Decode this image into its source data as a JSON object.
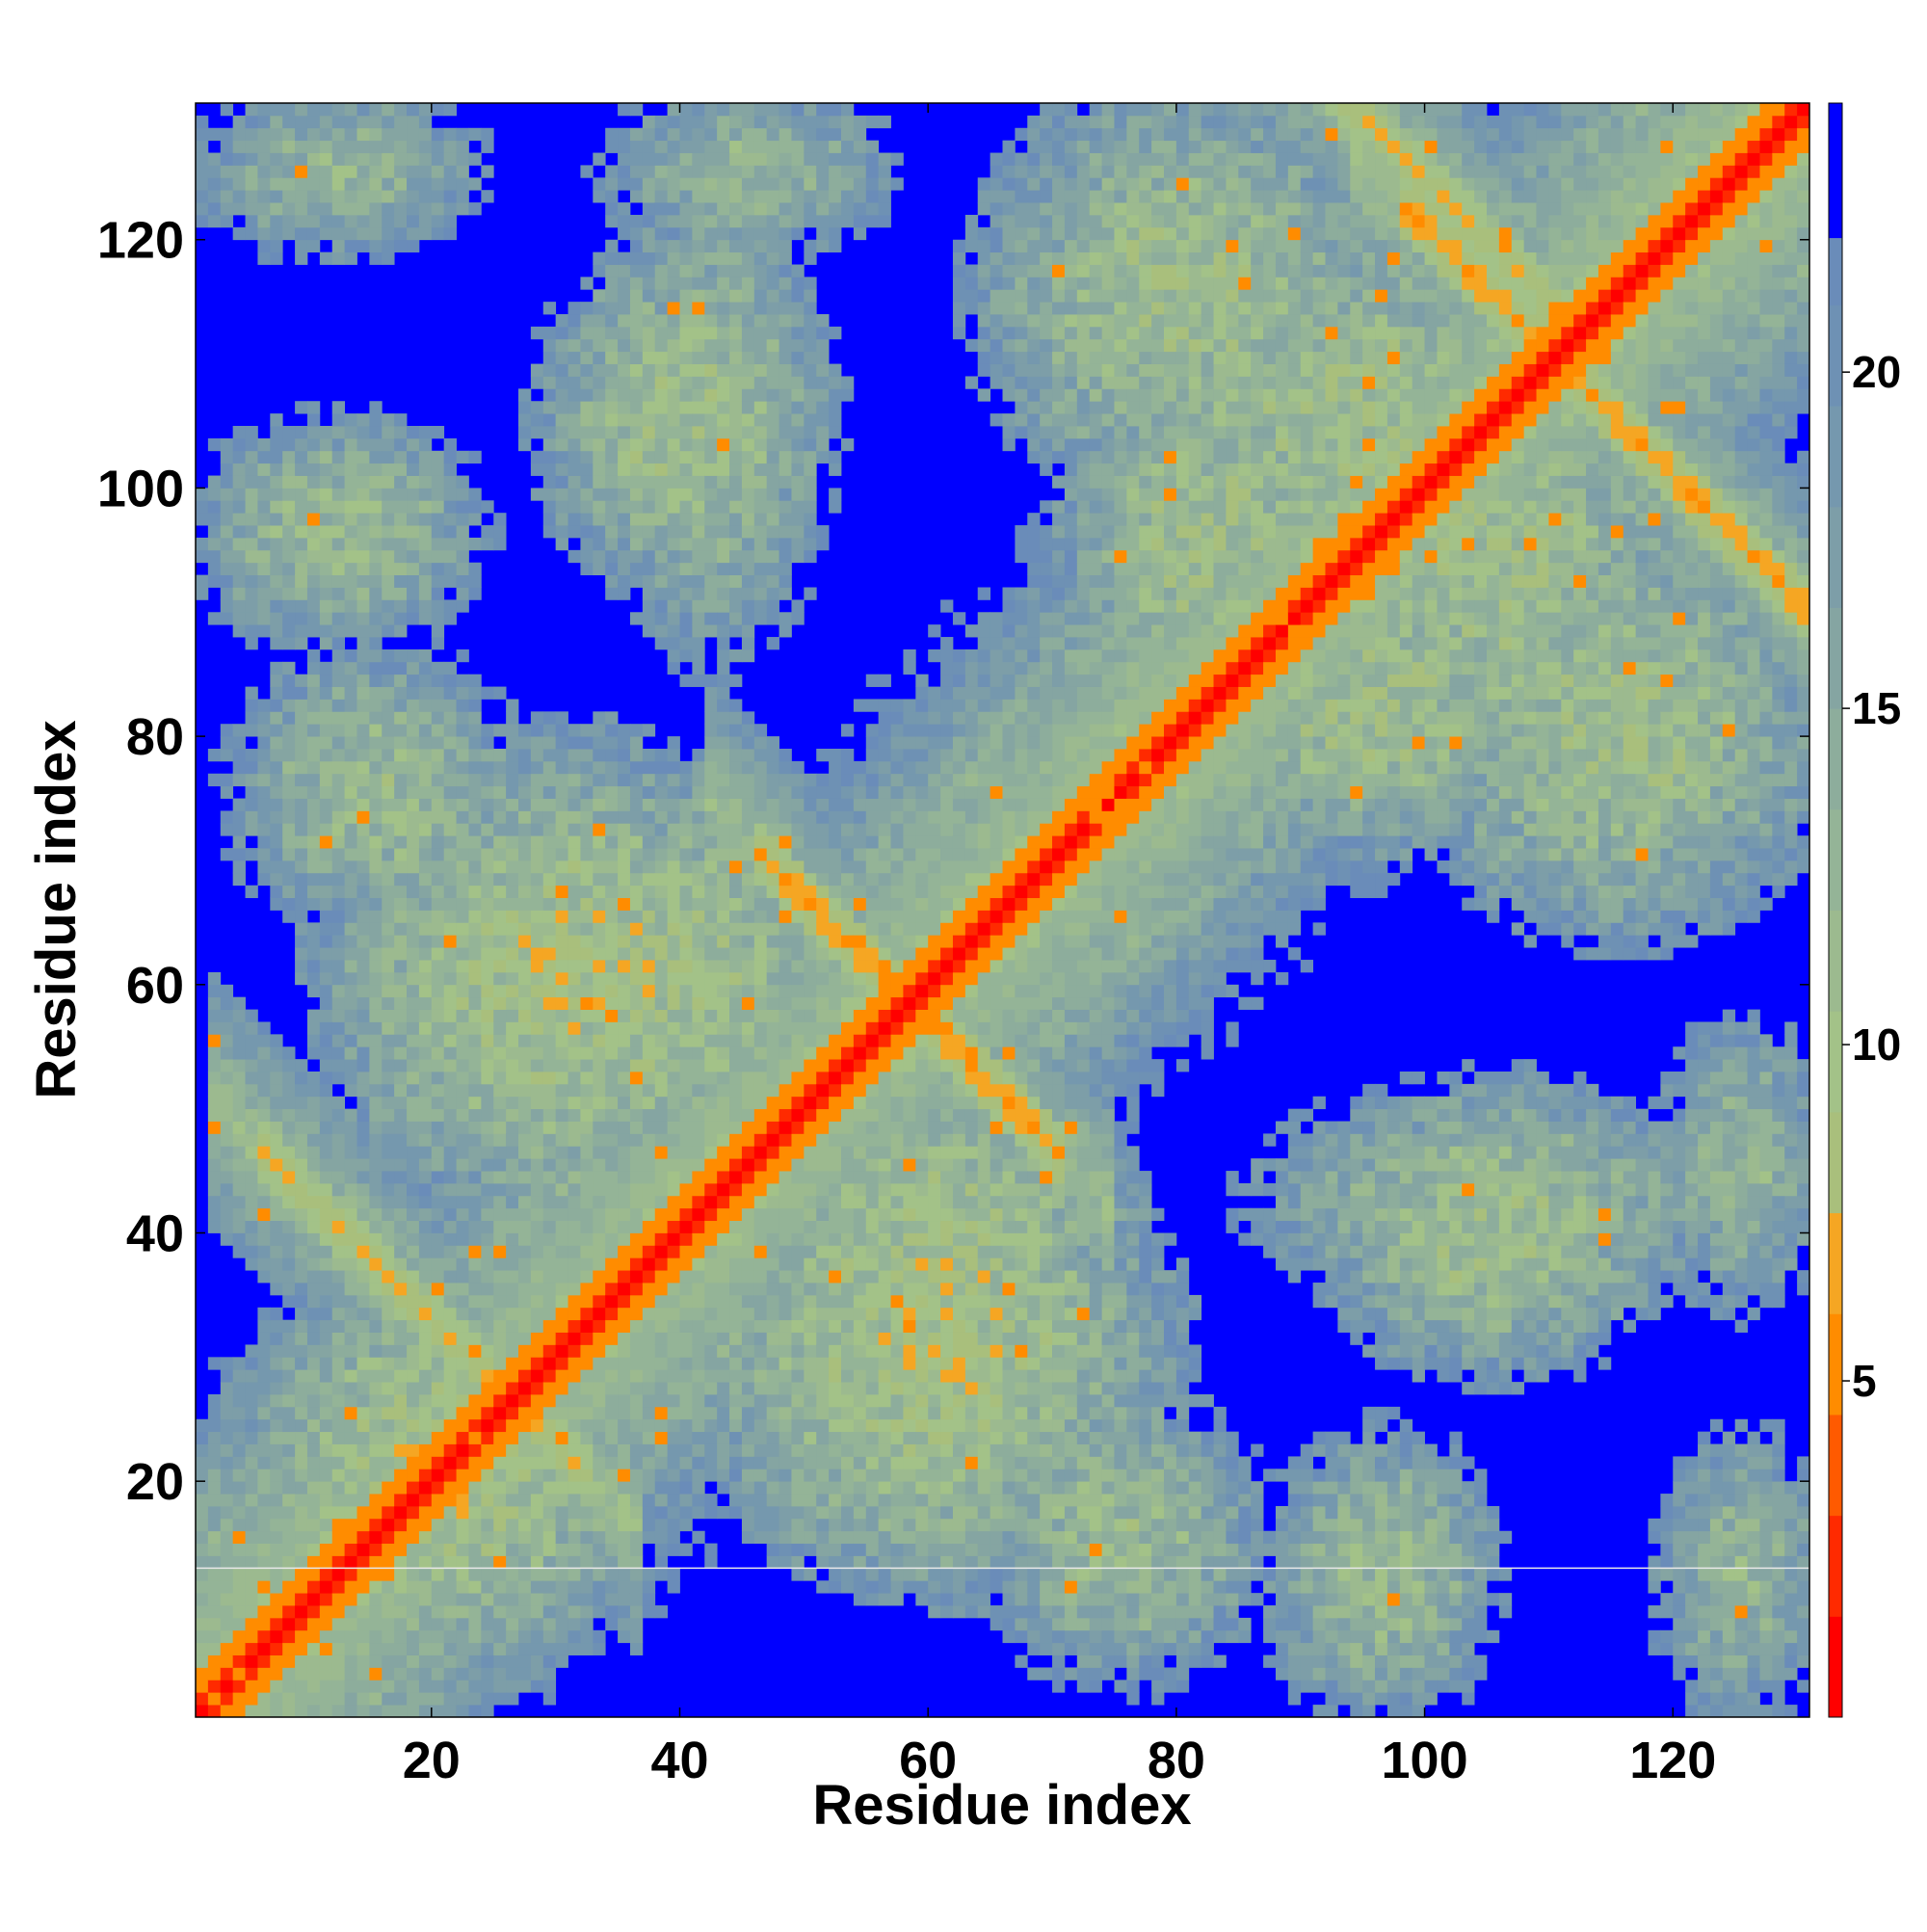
{
  "chart_data": {
    "type": "heatmap",
    "title": "",
    "xlabel": "Residue index",
    "ylabel": "Residue index",
    "n_residues": 130,
    "x_range": [
      1,
      131
    ],
    "y_range": [
      1,
      131
    ],
    "x_ticks": [
      20,
      40,
      60,
      80,
      100,
      120
    ],
    "y_ticks": [
      20,
      40,
      60,
      80,
      100,
      120
    ],
    "colorbar": {
      "range": [
        0,
        24
      ],
      "ticks": [
        5,
        10,
        15,
        20
      ],
      "levels": [
        {
          "from": 0,
          "to": 1.5,
          "color": "#ff0000"
        },
        {
          "from": 1.5,
          "to": 3,
          "color": "#ff2a00"
        },
        {
          "from": 3,
          "to": 4.5,
          "color": "#ff5a00"
        },
        {
          "from": 4.5,
          "to": 6,
          "color": "#ff8c00"
        },
        {
          "from": 6,
          "to": 7.5,
          "color": "#f5a623"
        },
        {
          "from": 7.5,
          "to": 9,
          "color": "#a9bf7c"
        },
        {
          "from": 9,
          "to": 10.5,
          "color": "#a3c288"
        },
        {
          "from": 10.5,
          "to": 12,
          "color": "#9cba8f"
        },
        {
          "from": 12,
          "to": 13.5,
          "color": "#94b497"
        },
        {
          "from": 13.5,
          "to": 15,
          "color": "#8dad9c"
        },
        {
          "from": 15,
          "to": 16.5,
          "color": "#85a5a2"
        },
        {
          "from": 16.5,
          "to": 18,
          "color": "#7d9ea8"
        },
        {
          "from": 18,
          "to": 19.5,
          "color": "#7598ae"
        },
        {
          "from": 19.5,
          "to": 21,
          "color": "#6e91b4"
        },
        {
          "from": 21,
          "to": 22,
          "color": "#6a8cb9"
        },
        {
          "from": 22,
          "to": 24,
          "color": "#0000ff"
        }
      ]
    },
    "contact_bands": [
      {
        "kind": "diagonal",
        "offset": 0,
        "distance": 1
      },
      {
        "kind": "diagonal",
        "offset": 1,
        "distance": 4
      },
      {
        "kind": "diagonal",
        "offset": 2,
        "distance": 6
      },
      {
        "kind": "anti",
        "cx": 58,
        "cy": 58,
        "from": 48,
        "to": 68,
        "distance": 5
      },
      {
        "kind": "anti",
        "cx": 26,
        "cy": 26,
        "from": 8,
        "to": 30,
        "distance": 6
      },
      {
        "kind": "anti",
        "cx": 110,
        "cy": 110,
        "from": 100,
        "to": 128,
        "distance": 5
      },
      {
        "kind": "anti",
        "cx": 112,
        "cy": 112,
        "from": 70,
        "to": 110,
        "distance": 6
      }
    ],
    "clusters": [
      {
        "x": 12,
        "y": 96,
        "sx": 10,
        "sy": 8,
        "level": 12
      },
      {
        "x": 40,
        "y": 105,
        "sx": 10,
        "sy": 12,
        "level": 11
      },
      {
        "x": 95,
        "y": 105,
        "sx": 18,
        "sy": 14,
        "level": 11
      },
      {
        "x": 115,
        "y": 80,
        "sx": 14,
        "sy": 14,
        "level": 11
      },
      {
        "x": 30,
        "y": 60,
        "sx": 16,
        "sy": 16,
        "level": 10
      },
      {
        "x": 60,
        "y": 35,
        "sx": 14,
        "sy": 16,
        "level": 10
      },
      {
        "x": 105,
        "y": 42,
        "sx": 16,
        "sy": 8,
        "level": 12
      },
      {
        "x": 82,
        "y": 95,
        "sx": 10,
        "sy": 14,
        "level": 11
      },
      {
        "x": 20,
        "y": 20,
        "sx": 14,
        "sy": 14,
        "level": 10
      },
      {
        "x": 75,
        "y": 15,
        "sx": 10,
        "sy": 10,
        "level": 12
      },
      {
        "x": 125,
        "y": 12,
        "sx": 6,
        "sy": 10,
        "level": 13
      },
      {
        "x": 125,
        "y": 45,
        "sx": 6,
        "sy": 10,
        "level": 13
      }
    ],
    "reference_line_y": 13
  }
}
